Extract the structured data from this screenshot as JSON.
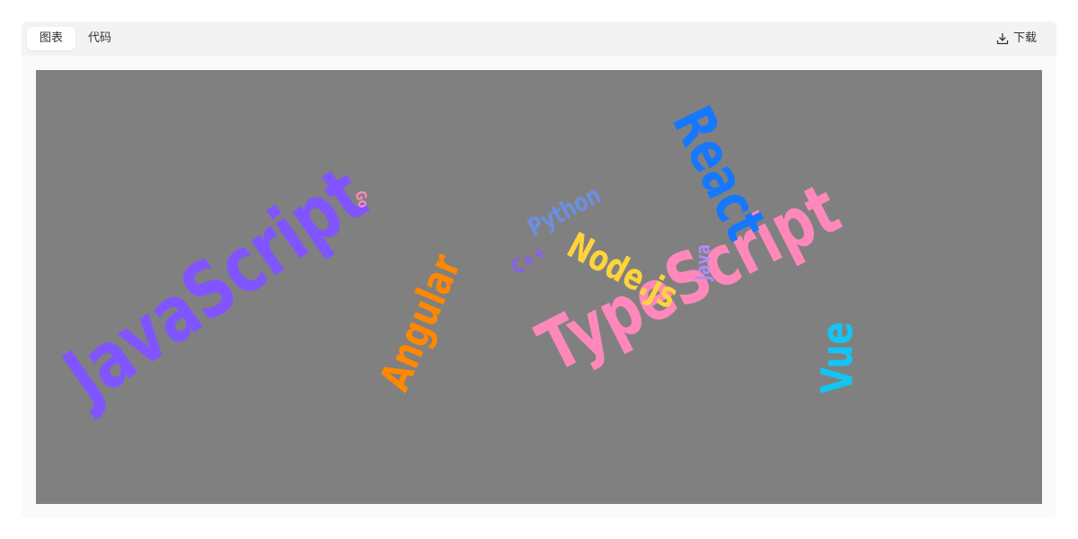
{
  "toolbar": {
    "tabs": [
      {
        "label": "图表",
        "active": true
      },
      {
        "label": "代码",
        "active": false
      }
    ],
    "download_label": "下载",
    "download_icon": "download-icon"
  },
  "chart_data": {
    "type": "wordcloud",
    "background": "#808080",
    "words": [
      {
        "text": "JavaScript",
        "color": "#8055FF"
      },
      {
        "text": "TypeScript",
        "color": "#FF88BB"
      },
      {
        "text": "React",
        "color": "#1677FF"
      },
      {
        "text": "Angular",
        "color": "#FF8800"
      },
      {
        "text": "Node.js",
        "color": "#FFD43B"
      },
      {
        "text": "Vue",
        "color": "#11C6F5"
      },
      {
        "text": "Python",
        "color": "#6C8FE0"
      },
      {
        "text": "Java",
        "color": "#B08CF5"
      },
      {
        "text": "C++",
        "color": "#8A5CF6"
      },
      {
        "text": "Go",
        "color": "#FF88BB"
      }
    ]
  }
}
